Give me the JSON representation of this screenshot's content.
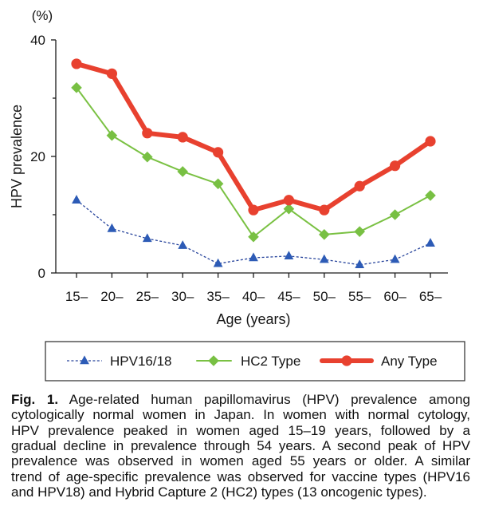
{
  "chart_data": {
    "type": "line",
    "unit_label": "(%)",
    "ylabel": "HPV prevalence",
    "xlabel": "Age (years)",
    "categories": [
      "15–",
      "20–",
      "25–",
      "30–",
      "35–",
      "40–",
      "45–",
      "50–",
      "55–",
      "60–",
      "65–"
    ],
    "ylim": [
      0,
      40
    ],
    "yticks": [
      0,
      20,
      40
    ],
    "yticklabels": [
      "0",
      "20",
      "40"
    ],
    "minor_yticks": [
      10,
      30
    ],
    "grid": false,
    "legend_position": "bottom",
    "series": [
      {
        "name": "HPV16/18",
        "marker": "triangle",
        "line_style": "dashed",
        "color": "#2d5bb6",
        "line_color": "#27449c",
        "values": [
          12.5,
          7.6,
          5.9,
          4.7,
          1.6,
          2.6,
          2.9,
          2.3,
          1.4,
          2.3,
          5.1
        ]
      },
      {
        "name": "HC2 Type",
        "marker": "diamond",
        "line_style": "solid",
        "color": "#78c043",
        "line_color": "#7ac143",
        "values": [
          31.8,
          23.6,
          19.9,
          17.4,
          15.3,
          6.2,
          11.0,
          6.6,
          7.1,
          10.0,
          13.3
        ]
      },
      {
        "name": "Any Type",
        "marker": "circle",
        "line_style": "bold",
        "color": "#e8412f",
        "line_color": "#e8412f",
        "values": [
          35.9,
          34.2,
          24.0,
          23.3,
          20.7,
          10.8,
          12.5,
          10.8,
          14.9,
          18.4,
          22.6
        ]
      }
    ]
  },
  "caption": {
    "label": "Fig. 1.",
    "lines": [
      "Age-related human papillomavirus (HPV) prevalence among",
      "cytologically normal women in Japan. In women with normal cytology,",
      "HPV prevalence peaked in women aged 15–19 years, followed by a",
      "gradual decline in prevalence through 54 years. A second peak of HPV",
      "prevalence was observed in women aged 55 years or older. A similar",
      "trend of age-specific prevalence was observed for vaccine types (HPV16",
      "and HPV18) and Hybrid Capture 2 (HC2) types (13 oncogenic types)."
    ]
  }
}
